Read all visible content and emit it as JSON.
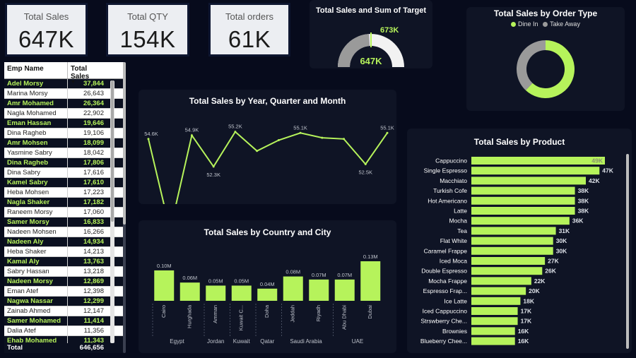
{
  "kpis": [
    {
      "title": "Total Sales",
      "value": "647K"
    },
    {
      "title": "Total QTY",
      "value": "154K"
    },
    {
      "title": "Total orders",
      "value": "61K"
    }
  ],
  "employees": {
    "headers": [
      "Emp Name",
      "Total Sales"
    ],
    "rows": [
      [
        "Adel Morsy",
        "37,844"
      ],
      [
        "Marina Morsy",
        "26,643"
      ],
      [
        "Amr Mohamed",
        "26,364"
      ],
      [
        "Nagla Mohamed",
        "22,902"
      ],
      [
        "Eman Hassan",
        "19,646"
      ],
      [
        "Dina Ragheb",
        "19,106"
      ],
      [
        "Amr Mohsen",
        "18,099"
      ],
      [
        "Yasmine Sabry",
        "18,042"
      ],
      [
        "Dina Ragheb",
        "17,806"
      ],
      [
        "Dina Sabry",
        "17,616"
      ],
      [
        "Kamel Sabry",
        "17,610"
      ],
      [
        "Heba Mohsen",
        "17,223"
      ],
      [
        "Nagla Shaker",
        "17,182"
      ],
      [
        "Raneem Morsy",
        "17,060"
      ],
      [
        "Samer Morsy",
        "16,833"
      ],
      [
        "Nadeen Mohsen",
        "16,266"
      ],
      [
        "Nadeen Aly",
        "14,934"
      ],
      [
        "Heba Shaker",
        "14,213"
      ],
      [
        "Kamal Aly",
        "13,763"
      ],
      [
        "Sabry Hassan",
        "13,218"
      ],
      [
        "Nadeen Morsy",
        "12,869"
      ],
      [
        "Eman Atef",
        "12,398"
      ],
      [
        "Nagwa Nassar",
        "12,299"
      ],
      [
        "Zainab Ahmed",
        "12,147"
      ],
      [
        "Samer Mohamed",
        "11,414"
      ],
      [
        "Dalia Atef",
        "11,356"
      ],
      [
        "Ehab Mohamed",
        "11,343"
      ]
    ],
    "total_label": "Total",
    "total_value": "646,656"
  },
  "gauge": {
    "title": "Total Sales and Sum of Target",
    "value_label": "647K",
    "target_label": "673K",
    "value": 647,
    "target": 673
  },
  "donut": {
    "title": "Total Sales by Order Type",
    "legend": [
      {
        "label": "Dine In",
        "color": "#b6f35b"
      },
      {
        "label": "Take Away",
        "color": "#9a9a9a"
      }
    ],
    "share_dine_in": 0.62
  },
  "colors": {
    "accent": "#b6f35b",
    "background": "#070b1c",
    "panel": "#0f1425"
  },
  "chart_data": [
    {
      "type": "line",
      "title": "Total Sales by Year, Quarter and Month",
      "values": [
        54.6,
        47.0,
        54.9,
        52.3,
        55.2,
        53.6,
        54.5,
        55.1,
        54.7,
        54.6,
        52.5,
        55.1
      ],
      "labels": [
        "54.6K",
        "",
        "54.9K",
        "52.3K",
        "55.2K",
        "",
        "",
        "55.1K",
        "",
        "",
        "52.5K",
        "55.1K"
      ],
      "bottom_label": "50.5K"
    },
    {
      "type": "bar",
      "title": "Total Sales by Country and City",
      "categories": [
        "Cairo",
        "Hurghada",
        "Amman",
        "Kuwait C...",
        "Doha",
        "Jeddah",
        "Riyadh",
        "Abu Dhabi",
        "Dubai"
      ],
      "groups": [
        {
          "name": "Egypt",
          "span": 2
        },
        {
          "name": "Jordan",
          "span": 1
        },
        {
          "name": "Kuwait",
          "span": 1
        },
        {
          "name": "Qatar",
          "span": 1
        },
        {
          "name": "Saudi Arabia",
          "span": 2
        },
        {
          "name": "UAE",
          "span": 2
        }
      ],
      "values": [
        0.1,
        0.06,
        0.05,
        0.05,
        0.04,
        0.08,
        0.07,
        0.07,
        0.13
      ],
      "value_labels": [
        "0.10M",
        "0.06M",
        "0.05M",
        "0.05M",
        "0.04M",
        "0.08M",
        "0.07M",
        "0.07M",
        "0.13M"
      ]
    },
    {
      "type": "bar",
      "orientation": "horizontal",
      "title": "Total Sales by Product",
      "categories": [
        "Cappuccino",
        "Single Espresso",
        "Macchiato",
        "Turkish Cofe",
        "Hot Americano",
        "Latte",
        "Mocha",
        "Tea",
        "Flat White",
        "Caramel Frappe",
        "Iced Moca",
        "Double Espresso",
        "Mocha Frappe",
        "Espresso Frap...",
        "Ice Latte",
        "Iced Cappuccino",
        "Strswberry Che...",
        "Brownies",
        "Blueberry Chee..."
      ],
      "values": [
        49,
        47,
        42,
        38,
        38,
        38,
        36,
        31,
        30,
        30,
        27,
        26,
        22,
        20,
        18,
        17,
        17,
        16,
        16
      ],
      "value_labels": [
        "49K",
        "47K",
        "42K",
        "38K",
        "38K",
        "38K",
        "36K",
        "31K",
        "30K",
        "30K",
        "27K",
        "26K",
        "22K",
        "20K",
        "18K",
        "17K",
        "17K",
        "16K",
        "16K"
      ]
    }
  ]
}
